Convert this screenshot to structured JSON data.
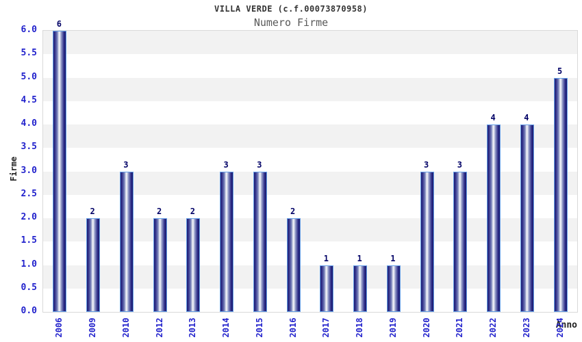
{
  "chart_data": {
    "type": "bar",
    "title": "VILLA VERDE (c.f.00073870958)",
    "subtitle": "Numero Firme",
    "xlabel": "Anno",
    "ylabel": "Firme",
    "categories": [
      "2006",
      "2009",
      "2010",
      "2012",
      "2013",
      "2014",
      "2015",
      "2016",
      "2017",
      "2018",
      "2019",
      "2020",
      "2021",
      "2022",
      "2023",
      "2024"
    ],
    "values": [
      6,
      2,
      3,
      2,
      2,
      3,
      3,
      2,
      1,
      1,
      1,
      3,
      3,
      4,
      4,
      5
    ],
    "ylim": [
      0,
      6
    ],
    "ytick_step": 0.5,
    "ytick_decimals": 1,
    "grid": "alternating-horizontal-bands",
    "legend": "none",
    "bar_labels_shown": true,
    "xtick_rotation_degrees": -90
  },
  "colors": {
    "background": "#ffffff",
    "title_text": "#333333",
    "subtitle_text": "#585858",
    "axis_tick_text": "#2222cc",
    "bar_value_text": "#000066",
    "axis_title_text": "#222222",
    "plot_border": "#d9d9d9",
    "band_shaded": "#f2f2f2",
    "band_plain": "#ffffff",
    "bar_outline": "#66a0e8",
    "bar_gradient": [
      "#1d1d72",
      "#32328c",
      "#7a84ba",
      "#e9ebf4",
      "#f4f5f9",
      "#9aa2cc",
      "#2b2b88",
      "#1a1a6b"
    ]
  }
}
